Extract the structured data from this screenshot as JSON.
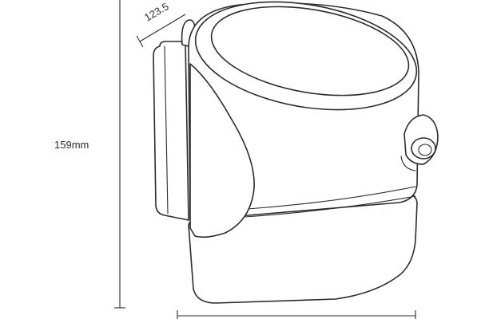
{
  "dimensions": {
    "height_label": "159mm",
    "depth_label": "123.5"
  },
  "drawing": {
    "line_color": "#2b2b2b",
    "background": "#ffffff"
  }
}
